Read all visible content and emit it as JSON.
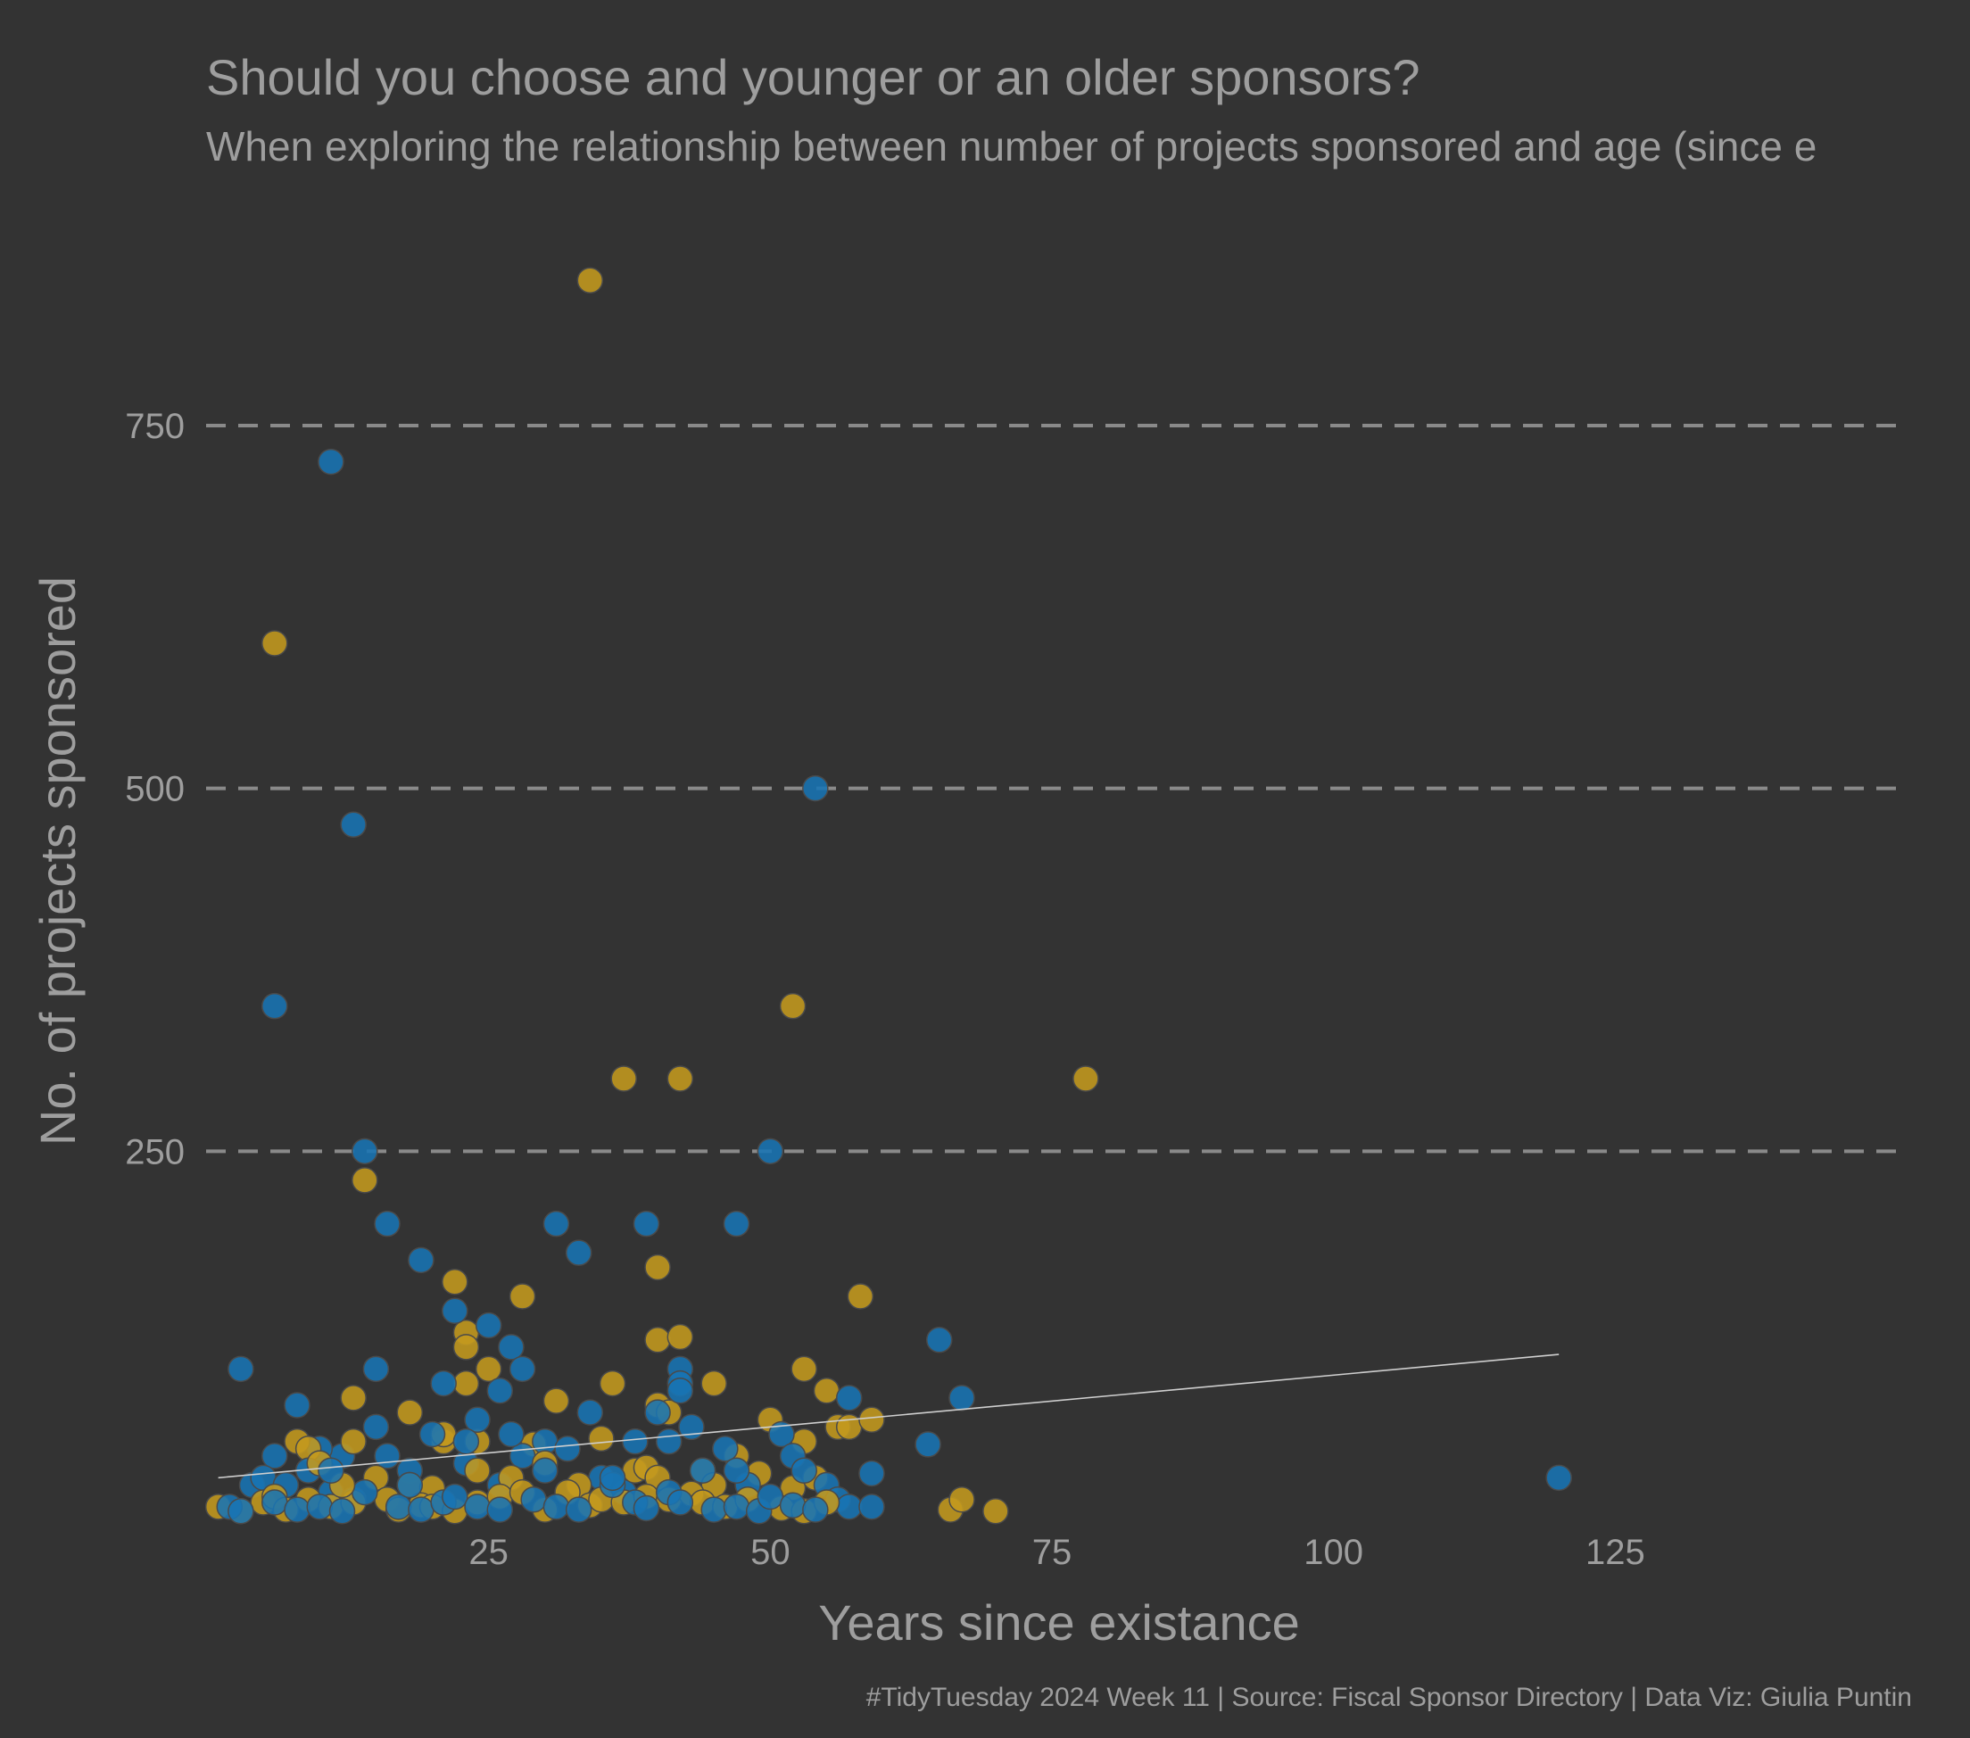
{
  "theme": {
    "background": "#333333",
    "text_color": "#9e9e9e",
    "grid_color": "#8a8a8a",
    "trend_color": "#cfcfcf"
  },
  "chart_data": {
    "type": "scatter",
    "title": "Should you choose and younger or an older sponsors?",
    "subtitle": "When exploring the relationship between number of projects sponsored and age (since e",
    "xlabel": "Years since existance",
    "ylabel": "No. of projects sponsored",
    "caption": "#TidyTuesday 2024 Week 11 | Source: Fiscal Sponsor Directory | Data Viz: Giulia Puntin",
    "xlim": [
      0,
      150
    ],
    "ylim": [
      0,
      860
    ],
    "x_ticks": [
      25,
      50,
      75,
      100,
      125
    ],
    "y_ticks": [
      250,
      500,
      750
    ],
    "grid": "horizontal dashed",
    "legend": "none",
    "trend_line": {
      "x": [
        1,
        120
      ],
      "y": [
        25,
        110
      ]
    },
    "series": [
      {
        "color": "#1874b4",
        "points": [
          [
            11,
            725
          ],
          [
            13,
            475
          ],
          [
            6,
            350
          ],
          [
            14,
            250
          ],
          [
            54,
            500
          ],
          [
            16,
            200
          ],
          [
            19,
            175
          ],
          [
            31,
            200
          ],
          [
            33,
            180
          ],
          [
            39,
            200
          ],
          [
            47,
            200
          ],
          [
            50,
            250
          ],
          [
            22,
            140
          ],
          [
            25,
            130
          ],
          [
            15,
            100
          ],
          [
            3,
            100
          ],
          [
            27,
            115
          ],
          [
            28,
            100
          ],
          [
            21,
            90
          ],
          [
            26,
            85
          ],
          [
            65,
            120
          ],
          [
            67,
            80
          ],
          [
            57,
            80
          ],
          [
            64,
            48
          ],
          [
            120,
            25
          ],
          [
            8,
            75
          ],
          [
            12,
            40
          ],
          [
            10,
            45
          ],
          [
            6,
            40
          ],
          [
            4,
            20
          ],
          [
            5,
            25
          ],
          [
            7,
            20
          ],
          [
            9,
            30
          ],
          [
            11,
            15
          ],
          [
            13,
            10
          ],
          [
            15,
            60
          ],
          [
            16,
            40
          ],
          [
            18,
            30
          ],
          [
            20,
            55
          ],
          [
            23,
            35
          ],
          [
            24,
            65
          ],
          [
            26,
            20
          ],
          [
            28,
            40
          ],
          [
            30,
            50
          ],
          [
            32,
            45
          ],
          [
            34,
            70
          ],
          [
            35,
            25
          ],
          [
            37,
            15
          ],
          [
            38,
            50
          ],
          [
            40,
            70
          ],
          [
            41,
            50
          ],
          [
            42,
            100
          ],
          [
            42,
            90
          ],
          [
            42,
            85
          ],
          [
            43,
            60
          ],
          [
            44,
            30
          ],
          [
            46,
            45
          ],
          [
            48,
            20
          ],
          [
            51,
            55
          ],
          [
            52,
            40
          ],
          [
            53,
            30
          ],
          [
            55,
            20
          ],
          [
            56,
            10
          ],
          [
            57,
            5
          ],
          [
            59,
            28
          ],
          [
            59,
            5
          ],
          [
            2,
            5
          ],
          [
            3,
            2
          ],
          [
            6,
            8
          ],
          [
            8,
            3
          ],
          [
            10,
            5
          ],
          [
            12,
            2
          ],
          [
            14,
            15
          ],
          [
            17,
            5
          ],
          [
            19,
            3
          ],
          [
            21,
            8
          ],
          [
            22,
            12
          ],
          [
            24,
            5
          ],
          [
            26,
            3
          ],
          [
            29,
            10
          ],
          [
            31,
            5
          ],
          [
            33,
            3
          ],
          [
            36,
            20
          ],
          [
            38,
            8
          ],
          [
            39,
            4
          ],
          [
            41,
            15
          ],
          [
            42,
            8
          ],
          [
            45,
            3
          ],
          [
            47,
            5
          ],
          [
            49,
            2
          ],
          [
            50,
            12
          ],
          [
            52,
            6
          ],
          [
            54,
            3
          ],
          [
            36,
            25
          ],
          [
            30,
            30
          ],
          [
            18,
            20
          ],
          [
            11,
            30
          ],
          [
            23,
            50
          ],
          [
            47,
            30
          ],
          [
            27,
            55
          ]
        ]
      },
      {
        "color": "#c49a1e",
        "points": [
          [
            34,
            850
          ],
          [
            6,
            600
          ],
          [
            52,
            350
          ],
          [
            37,
            300
          ],
          [
            42,
            300
          ],
          [
            78,
            300
          ],
          [
            14,
            230
          ],
          [
            22,
            160
          ],
          [
            28,
            150
          ],
          [
            40,
            170
          ],
          [
            23,
            125
          ],
          [
            23,
            115
          ],
          [
            40,
            120
          ],
          [
            42,
            122
          ],
          [
            25,
            100
          ],
          [
            36,
            90
          ],
          [
            23,
            90
          ],
          [
            45,
            90
          ],
          [
            53,
            100
          ],
          [
            58,
            150
          ],
          [
            55,
            85
          ],
          [
            13,
            80
          ],
          [
            31,
            78
          ],
          [
            18,
            70
          ],
          [
            40,
            75
          ],
          [
            41,
            70
          ],
          [
            50,
            65
          ],
          [
            56,
            60
          ],
          [
            57,
            60
          ],
          [
            59,
            65
          ],
          [
            8,
            50
          ],
          [
            9,
            45
          ],
          [
            13,
            50
          ],
          [
            21,
            50
          ],
          [
            21,
            55
          ],
          [
            24,
            50
          ],
          [
            29,
            48
          ],
          [
            35,
            52
          ],
          [
            47,
            40
          ],
          [
            53,
            50
          ],
          [
            10,
            35
          ],
          [
            15,
            25
          ],
          [
            18,
            20
          ],
          [
            20,
            18
          ],
          [
            24,
            30
          ],
          [
            27,
            25
          ],
          [
            30,
            35
          ],
          [
            33,
            20
          ],
          [
            38,
            30
          ],
          [
            39,
            32
          ],
          [
            40,
            25
          ],
          [
            44,
            30
          ],
          [
            45,
            20
          ],
          [
            49,
            28
          ],
          [
            52,
            18
          ],
          [
            54,
            25
          ],
          [
            66,
            3
          ],
          [
            67,
            10
          ],
          [
            70,
            2
          ],
          [
            1,
            5
          ],
          [
            3,
            2
          ],
          [
            5,
            8
          ],
          [
            6,
            12
          ],
          [
            7,
            3
          ],
          [
            9,
            10
          ],
          [
            11,
            5
          ],
          [
            13,
            8
          ],
          [
            16,
            10
          ],
          [
            17,
            3
          ],
          [
            19,
            6
          ],
          [
            20,
            5
          ],
          [
            22,
            2
          ],
          [
            24,
            8
          ],
          [
            26,
            12
          ],
          [
            28,
            15
          ],
          [
            30,
            3
          ],
          [
            32,
            15
          ],
          [
            34,
            6
          ],
          [
            35,
            10
          ],
          [
            37,
            8
          ],
          [
            39,
            12
          ],
          [
            41,
            10
          ],
          [
            43,
            14
          ],
          [
            44,
            8
          ],
          [
            46,
            5
          ],
          [
            48,
            10
          ],
          [
            51,
            4
          ],
          [
            53,
            2
          ],
          [
            55,
            8
          ],
          [
            12,
            20
          ]
        ]
      }
    ]
  }
}
